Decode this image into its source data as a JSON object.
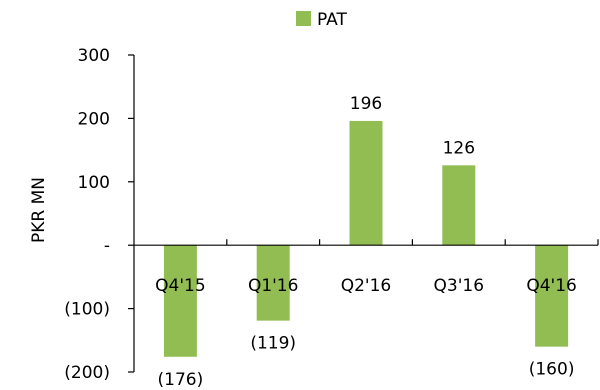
{
  "chart_data": {
    "type": "bar",
    "title": "",
    "xlabel": "",
    "ylabel": "PKR MN",
    "ylim": [
      -200,
      300
    ],
    "yticks": [
      300,
      200,
      100,
      0,
      -100,
      -200
    ],
    "ytick_labels": [
      "300",
      "200",
      "100",
      "-",
      "(100)",
      "(200)"
    ],
    "categories": [
      "Q4'15",
      "Q1'16",
      "Q2'16",
      "Q3'16",
      "Q4'16"
    ],
    "series": [
      {
        "name": "PAT",
        "values": [
          -176,
          -119,
          196,
          126,
          -160
        ],
        "labels": [
          "(176)",
          "(119)",
          "196",
          "126",
          "(160)"
        ],
        "color": "#92BD53"
      }
    ],
    "legend": {
      "position": "top-center",
      "label": "PAT"
    },
    "grid": false
  }
}
